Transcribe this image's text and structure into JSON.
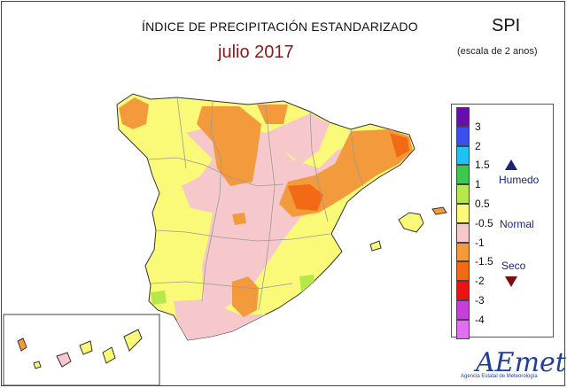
{
  "title": "ÍNDICE DE PRECIPITACIÓN ESTANDARIZADO",
  "subtitle": "julio 2017",
  "index_name": "SPI",
  "index_scale": "(escala de 2 anos)",
  "legend": {
    "items": [
      {
        "label": "3",
        "color": "#6a0dad"
      },
      {
        "label": "2",
        "color": "#3b4ef0"
      },
      {
        "label": "1.5",
        "color": "#1ec4f0"
      },
      {
        "label": "1",
        "color": "#3cc84a"
      },
      {
        "label": "0.5",
        "color": "#b4e84c"
      },
      {
        "label": "-0.5",
        "color": "#fafa78"
      },
      {
        "label": "-1",
        "color": "#f6c8cc"
      },
      {
        "label": "-1.5",
        "color": "#f39a3c"
      },
      {
        "label": "-2",
        "color": "#f26a14"
      },
      {
        "label": "-3",
        "color": "#e81414"
      },
      {
        "label": "-4",
        "color": "#c640d8"
      },
      {
        "label": "",
        "color": "#e070f0"
      }
    ],
    "categories": {
      "wet": "Humedo",
      "normal": "Normal",
      "dry": "Seco"
    },
    "colors": {
      "wet_arrow": "#1a237e",
      "dry_arrow": "#7a0d0d"
    }
  },
  "logo": {
    "word": "AEmet",
    "tagline": "Agencia Estatal de Meteorología"
  },
  "map_colors": {
    "normal": "#fafa78",
    "slightly_dry": "#f6c8cc",
    "dry": "#f39a3c",
    "very_dry": "#f26a14",
    "wet": "#b4e84c",
    "boundary": "#9a9a9a",
    "coast": "#333333"
  }
}
